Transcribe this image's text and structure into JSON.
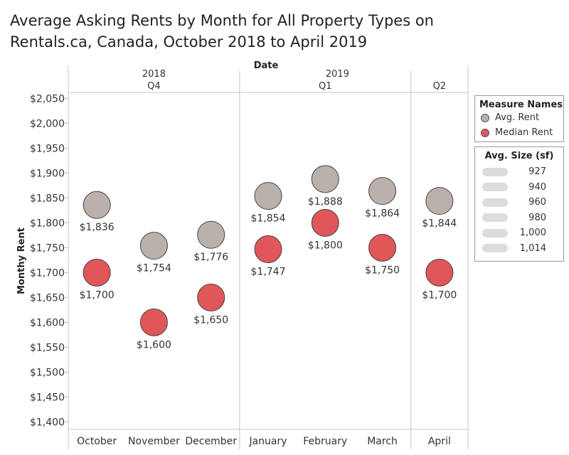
{
  "title": "Average Asking Rents by Month for All Property Types on Rentals.ca, Canada, October 2018 to April 2019",
  "chart_data": {
    "type": "scatter",
    "title": "Average Asking Rents by Month for All Property Types on Rentals.ca, Canada, October 2018 to April 2019",
    "xlabel": "Date",
    "ylabel": "Monthy Rent",
    "ylim": [
      1385,
      2062
    ],
    "yticks": [
      1400,
      1450,
      1500,
      1550,
      1600,
      1650,
      1700,
      1750,
      1800,
      1850,
      1900,
      1950,
      2000,
      2050
    ],
    "ytick_labels": [
      "$1,400",
      "$1,450",
      "$1,500",
      "$1,550",
      "$1,600",
      "$1,650",
      "$1,700",
      "$1,750",
      "$1,800",
      "$1,850",
      "$1,900",
      "$1,950",
      "$2,000",
      "$2,050"
    ],
    "years": [
      {
        "label": "2018",
        "quarters": [
          {
            "label": "Q4",
            "months": [
              "October",
              "November",
              "December"
            ]
          }
        ]
      },
      {
        "label": "2019",
        "quarters": [
          {
            "label": "Q1",
            "months": [
              "January",
              "February",
              "March"
            ]
          },
          {
            "label": "Q2",
            "months": [
              "April"
            ]
          }
        ]
      }
    ],
    "categories": [
      "October",
      "November",
      "December",
      "January",
      "February",
      "March",
      "April"
    ],
    "series": [
      {
        "name": "Avg. Rent",
        "color": "#bab0ac",
        "values": [
          1836,
          1754,
          1776,
          1854,
          1888,
          1864,
          1844
        ],
        "labels": [
          "$1,836",
          "$1,754",
          "$1,776",
          "$1,854",
          "$1,888",
          "$1,864",
          "$1,844"
        ]
      },
      {
        "name": "Median Rent",
        "color": "#e15759",
        "values": [
          1700,
          1600,
          1650,
          1747,
          1800,
          1750,
          1700
        ],
        "labels": [
          "$1,700",
          "$1,600",
          "$1,650",
          "$1,747",
          "$1,800",
          "$1,750",
          "$1,700"
        ]
      }
    ],
    "grid": false,
    "legend": {
      "title": "Measure Names",
      "items": [
        "Avg. Rent",
        "Median Rent"
      ],
      "placement": "right"
    },
    "size_legend": {
      "title": "Avg. Size (sf)",
      "items": [
        "927",
        "940",
        "960",
        "980",
        "1,000",
        "1,014"
      ]
    }
  }
}
